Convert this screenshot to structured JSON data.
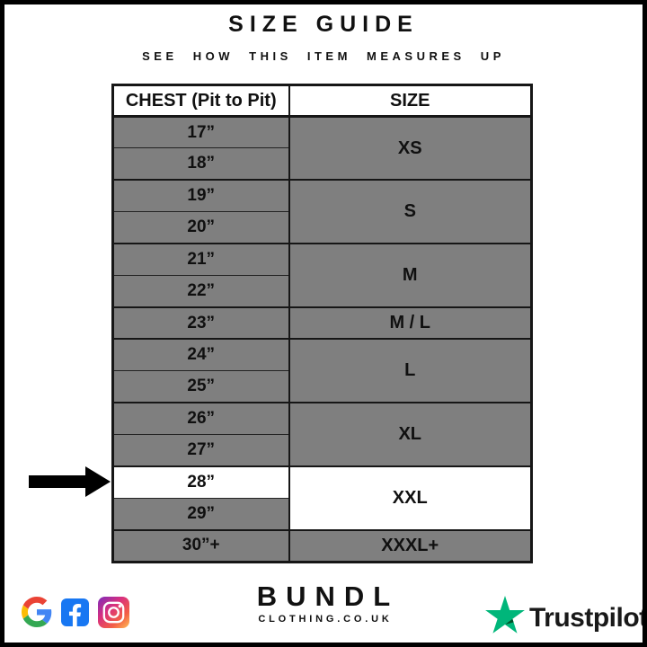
{
  "header": {
    "title": "SIZE GUIDE",
    "subtitle": "SEE HOW THIS ITEM MEASURES UP"
  },
  "table": {
    "col1_header": "CHEST (Pit to Pit)",
    "col2_header": "SIZE",
    "row_bg": "#7f7f7f",
    "highlight_bg": "#ffffff",
    "groups": [
      {
        "size": "XS",
        "size_highlight": false,
        "rows": [
          {
            "chest": "17”",
            "highlight": false
          },
          {
            "chest": "18”",
            "highlight": false
          }
        ]
      },
      {
        "size": "S",
        "size_highlight": false,
        "rows": [
          {
            "chest": "19”",
            "highlight": false
          },
          {
            "chest": "20”",
            "highlight": false
          }
        ]
      },
      {
        "size": "M",
        "size_highlight": false,
        "rows": [
          {
            "chest": "21”",
            "highlight": false
          },
          {
            "chest": "22”",
            "highlight": false
          }
        ]
      },
      {
        "size": "M / L",
        "size_highlight": false,
        "rows": [
          {
            "chest": "23”",
            "highlight": false
          }
        ]
      },
      {
        "size": "L",
        "size_highlight": false,
        "rows": [
          {
            "chest": "24”",
            "highlight": false
          },
          {
            "chest": "25”",
            "highlight": false
          }
        ]
      },
      {
        "size": "XL",
        "size_highlight": false,
        "rows": [
          {
            "chest": "26”",
            "highlight": false
          },
          {
            "chest": "27”",
            "highlight": false
          }
        ]
      },
      {
        "size": "XXL",
        "size_highlight": true,
        "rows": [
          {
            "chest": "28”",
            "highlight": true
          },
          {
            "chest": "29”",
            "highlight": false
          }
        ]
      },
      {
        "size": "XXXL+",
        "size_highlight": false,
        "rows": [
          {
            "chest": "30”+",
            "highlight": false
          }
        ]
      }
    ]
  },
  "annotation": {
    "arrow_color": "#000000",
    "points_to": "28”"
  },
  "footer": {
    "brand": {
      "name": "BUNDL",
      "tagline": "CLOTHING.CO.UK"
    },
    "social_icons": [
      "google",
      "facebook",
      "instagram"
    ],
    "trustpilot": {
      "label": "Trustpilot",
      "star_color": "#00B67A",
      "star_shade": "#005128"
    }
  },
  "colors": {
    "row_gray": "#7f7f7f",
    "border_ink": "#161616",
    "facebook_blue": "#1877F2",
    "google_blue": "#4285F4",
    "google_red": "#EA4335",
    "google_yellow": "#FBBC05",
    "google_green": "#34A853"
  },
  "chart_data": {
    "type": "table",
    "title": "SIZE GUIDE",
    "subtitle": "SEE HOW THIS ITEM MEASURES UP",
    "columns": [
      "CHEST (Pit to Pit)",
      "SIZE"
    ],
    "rows": [
      [
        "17”",
        "XS"
      ],
      [
        "18”",
        "XS"
      ],
      [
        "19”",
        "S"
      ],
      [
        "20”",
        "S"
      ],
      [
        "21”",
        "M"
      ],
      [
        "22”",
        "M"
      ],
      [
        "23”",
        "M / L"
      ],
      [
        "24”",
        "L"
      ],
      [
        "25”",
        "L"
      ],
      [
        "26”",
        "XL"
      ],
      [
        "27”",
        "XL"
      ],
      [
        "28”",
        "XXL"
      ],
      [
        "29”",
        "XXL"
      ],
      [
        "30”+",
        "XXXL+"
      ]
    ],
    "highlighted_row": [
      "28”",
      "XXL"
    ],
    "legend_position": "none",
    "grid": true
  }
}
